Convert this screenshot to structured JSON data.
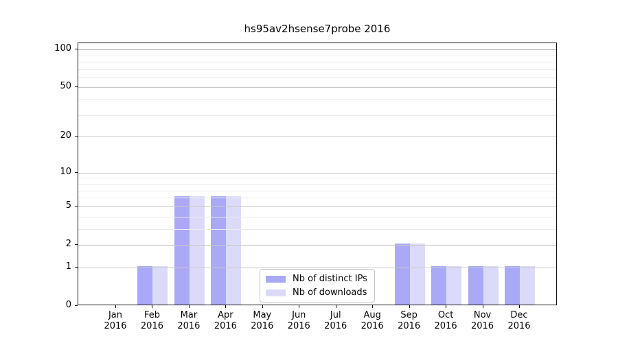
{
  "figure": {
    "title": "hs95av2hsense7probe 2016"
  },
  "chart_data": {
    "type": "bar",
    "title": "hs95av2hsense7probe 2016",
    "categories": [
      "Jan 2016",
      "Feb 2016",
      "Mar 2016",
      "Apr 2016",
      "May 2016",
      "Jun 2016",
      "Jul 2016",
      "Aug 2016",
      "Sep 2016",
      "Oct 2016",
      "Nov 2016",
      "Dec 2016"
    ],
    "series": [
      {
        "name": "Nb of distinct IPs",
        "color": "#a9a9f7",
        "values": [
          0,
          1,
          6,
          6,
          0,
          0,
          0,
          0,
          2,
          1,
          1,
          1
        ]
      },
      {
        "name": "Nb of downloads",
        "color": "#dbdbf9",
        "values": [
          0,
          1,
          6,
          6,
          0,
          0,
          0,
          0,
          2,
          1,
          1,
          1
        ]
      }
    ],
    "xlabel": "",
    "ylabel": "",
    "y_axis": {
      "scale": "log1p",
      "ticks": [
        0,
        1,
        2,
        5,
        10,
        20,
        50,
        100
      ],
      "minor_ticks": [
        3,
        4,
        6,
        7,
        8,
        9,
        30,
        40,
        60,
        70,
        80,
        90
      ],
      "ylim": [
        0,
        112
      ]
    },
    "x_axis": {
      "tick_labels_line2": "2016"
    },
    "legend": {
      "position": "lower center",
      "entries": [
        "Nb of distinct IPs",
        "Nb of downloads"
      ]
    },
    "grid": "both",
    "colors": {
      "grid_major": "#c8c8c8",
      "grid_major_dark": "#b3b3b3",
      "grid_minor": "#ebebeb",
      "axis": "#111111",
      "text": "#000000"
    }
  }
}
